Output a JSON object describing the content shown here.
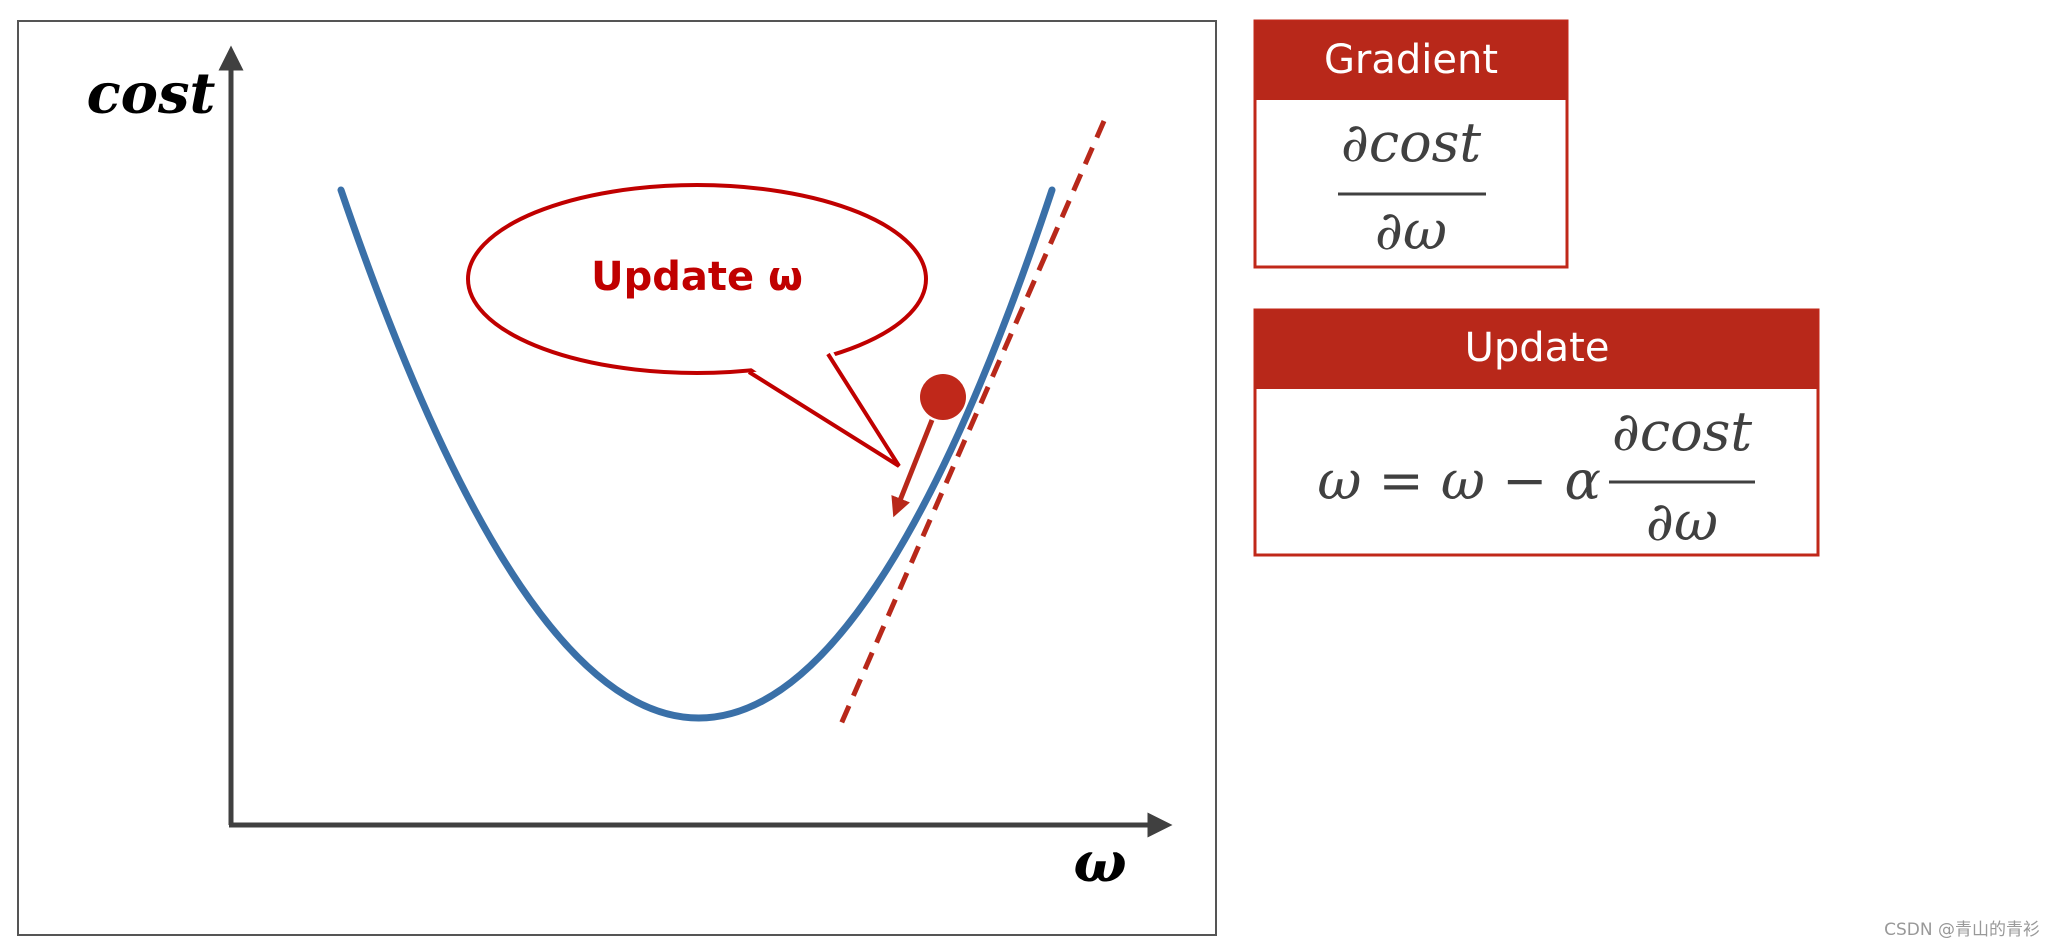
{
  "axes": {
    "y_label": "cost",
    "x_label": "ω"
  },
  "callout": {
    "text": "Update ω"
  },
  "gradient_box": {
    "title": "Gradient",
    "numerator": "∂cost",
    "denominator": "∂ω"
  },
  "update_box": {
    "title": "Update",
    "lhs": "ω = ω − α",
    "numerator": "∂cost",
    "denominator": "∂ω"
  },
  "watermark": "CSDN @青山的青衫"
}
